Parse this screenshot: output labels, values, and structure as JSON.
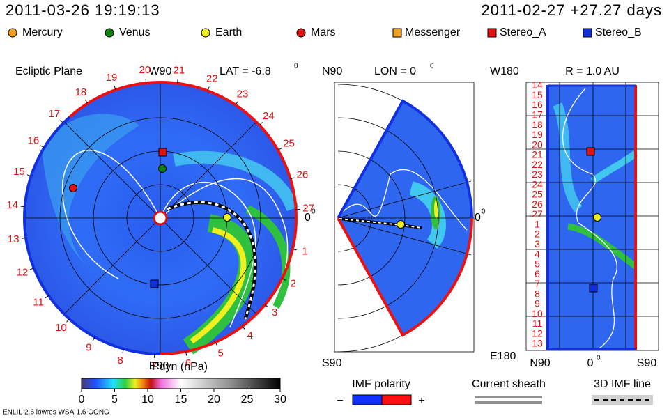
{
  "header": {
    "datetime": "2011-03-26 19:19:13",
    "reference": "2011-02-27 +27.27 days"
  },
  "legend": {
    "planets": [
      "Mercury",
      "Venus",
      "Earth",
      "Mars"
    ],
    "spacecraft": [
      "Messenger",
      "Stereo_A",
      "Stereo_B"
    ]
  },
  "ecliptic": {
    "title": "Ecliptic Plane",
    "top_label": "W90",
    "bottom_label": "E90",
    "lat_label": "LAT = -6.8",
    "lat_unit": "0",
    "zero_label": "0",
    "zero_unit": "0",
    "clock_labels": [
      1,
      2,
      3,
      4,
      5,
      6,
      7,
      8,
      9,
      10,
      11,
      12,
      13,
      14,
      15,
      16,
      17,
      18,
      19,
      20,
      21,
      22,
      23,
      24,
      25,
      26,
      27
    ]
  },
  "meridional": {
    "top_label": "N90",
    "bottom_label": "S90",
    "lon_label": "LON = 0",
    "lon_unit": "0",
    "zero_label": "0",
    "zero_unit": "0"
  },
  "radial": {
    "title": "R = 1.0 AU",
    "top_label": "W180",
    "bottom_label": "E180",
    "x_labels": [
      "N90",
      "0",
      "S90"
    ],
    "x_unit": "0",
    "rotation_labels": [
      14,
      15,
      16,
      17,
      18,
      19,
      20,
      21,
      22,
      23,
      24,
      25,
      26,
      27,
      1,
      2,
      3,
      4,
      5,
      6,
      7,
      8,
      9,
      10,
      11,
      12,
      13
    ]
  },
  "colorbar": {
    "title": "Pdyn (nPa)",
    "ticks": [
      0,
      5,
      10,
      15,
      20,
      25,
      30
    ]
  },
  "imf": {
    "title": "IMF polarity",
    "minus": "−",
    "plus": "+"
  },
  "sheath": "Current sheath",
  "imf_line": "3D IMF line",
  "footer": "ENLIL-2.6 lowres WSA-1.6 GONG"
}
